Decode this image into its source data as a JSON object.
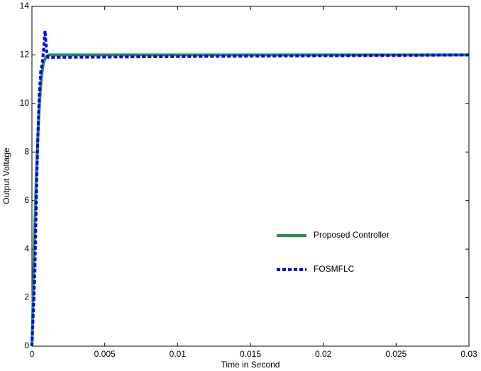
{
  "chart_data": {
    "type": "line",
    "x_label": "Time in Second",
    "y_label": "Output Voltage",
    "xlim": [
      0,
      0.03
    ],
    "xticks": [
      0,
      0.005,
      0.01,
      0.015,
      0.02,
      0.025,
      0.03
    ],
    "ylim": [
      0,
      14
    ],
    "yticks": [
      0,
      2,
      4,
      6,
      8,
      10,
      12,
      14
    ],
    "grid": false,
    "legend": "center-right",
    "series": [
      {
        "name": "Proposed Controller",
        "color": "#2e8b57",
        "style": "solid",
        "x": [
          0,
          0.0001,
          0.0002,
          0.0003,
          0.0004,
          0.0005,
          0.0006,
          0.0007,
          0.0008,
          0.001,
          0.0012,
          0.03
        ],
        "values": [
          0,
          2.5,
          5,
          7,
          8.5,
          9.8,
          10.7,
          11.3,
          11.7,
          11.95,
          12,
          12
        ]
      },
      {
        "name": "FOSMFLC",
        "color": "#0000ff",
        "style": "dashed",
        "x": [
          0,
          0.0002,
          0.0003,
          0.0004,
          0.0005,
          0.0006,
          0.0007,
          0.0008,
          0.0009,
          0.001,
          0.0011,
          0.0015,
          0.015,
          0.03
        ],
        "values": [
          0,
          3,
          6,
          8.5,
          10.3,
          11.3,
          11.6,
          12.2,
          13,
          12.2,
          11.9,
          11.9,
          11.95,
          12
        ]
      }
    ]
  }
}
